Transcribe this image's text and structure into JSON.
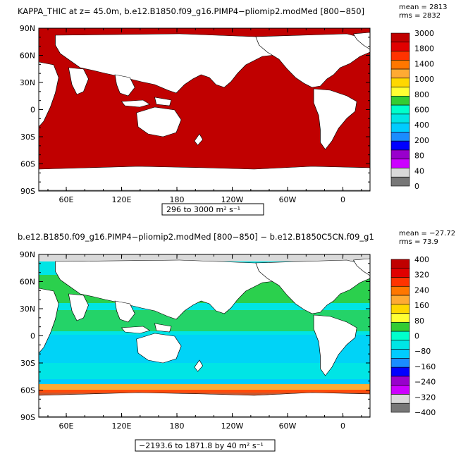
{
  "panels": [
    {
      "title": "KAPPA_THIC at z=   45.0m, b.e12.B1850.f09_g16.PIMP4−pliomip2.modMed [800−850]",
      "mean": "mean = 2813",
      "rms": "rms = 2832",
      "range": "296 to 3000 m² s⁻¹",
      "lat_labels": [
        "90N",
        "60N",
        "30N",
        "0",
        "30S",
        "60S",
        "90S"
      ],
      "lon_labels": [
        "60E",
        "120E",
        "180",
        "120W",
        "60W",
        "0"
      ],
      "colorbar": {
        "labels": [
          "3000",
          "1800",
          "1400",
          "1000",
          "800",
          "600",
          "400",
          "200",
          "80",
          "40",
          "0"
        ],
        "colors": [
          "#c00000",
          "#e00000",
          "#ff3300",
          "#ff7700",
          "#ffaa33",
          "#ffd700",
          "#ffff33",
          "#33cc33",
          "#00ffcc",
          "#00e5e5",
          "#00ccff",
          "#1a8cff",
          "#0000ff",
          "#9900cc",
          "#cc00ff",
          "#d9d9d9",
          "#777777"
        ]
      }
    },
    {
      "title": "b.e12.B1850.f09_g16.PIMP4−pliomip2.modMed [800−850] − b.e12.B1850C5CN.f09_g1",
      "mean": "mean = −27.72",
      "rms": "rms = 73.9",
      "range": "−2193.6 to 1871.8 by 40 m² s⁻¹",
      "lat_labels": [
        "90N",
        "60N",
        "30N",
        "0",
        "30S",
        "60S",
        "90S"
      ],
      "lon_labels": [
        "60E",
        "120E",
        "180",
        "120W",
        "60W",
        "0"
      ],
      "colorbar": {
        "labels": [
          "400",
          "320",
          "240",
          "160",
          "80",
          "0",
          "−80",
          "−160",
          "−240",
          "−320",
          "−400"
        ],
        "colors": [
          "#c00000",
          "#e00000",
          "#ff3300",
          "#ff7700",
          "#ffaa33",
          "#ffd700",
          "#ffff33",
          "#33cc33",
          "#00ffcc",
          "#00e5e5",
          "#00ccff",
          "#1a8cff",
          "#0000ff",
          "#9900cc",
          "#cc00ff",
          "#d9d9d9",
          "#777777"
        ]
      }
    }
  ]
}
